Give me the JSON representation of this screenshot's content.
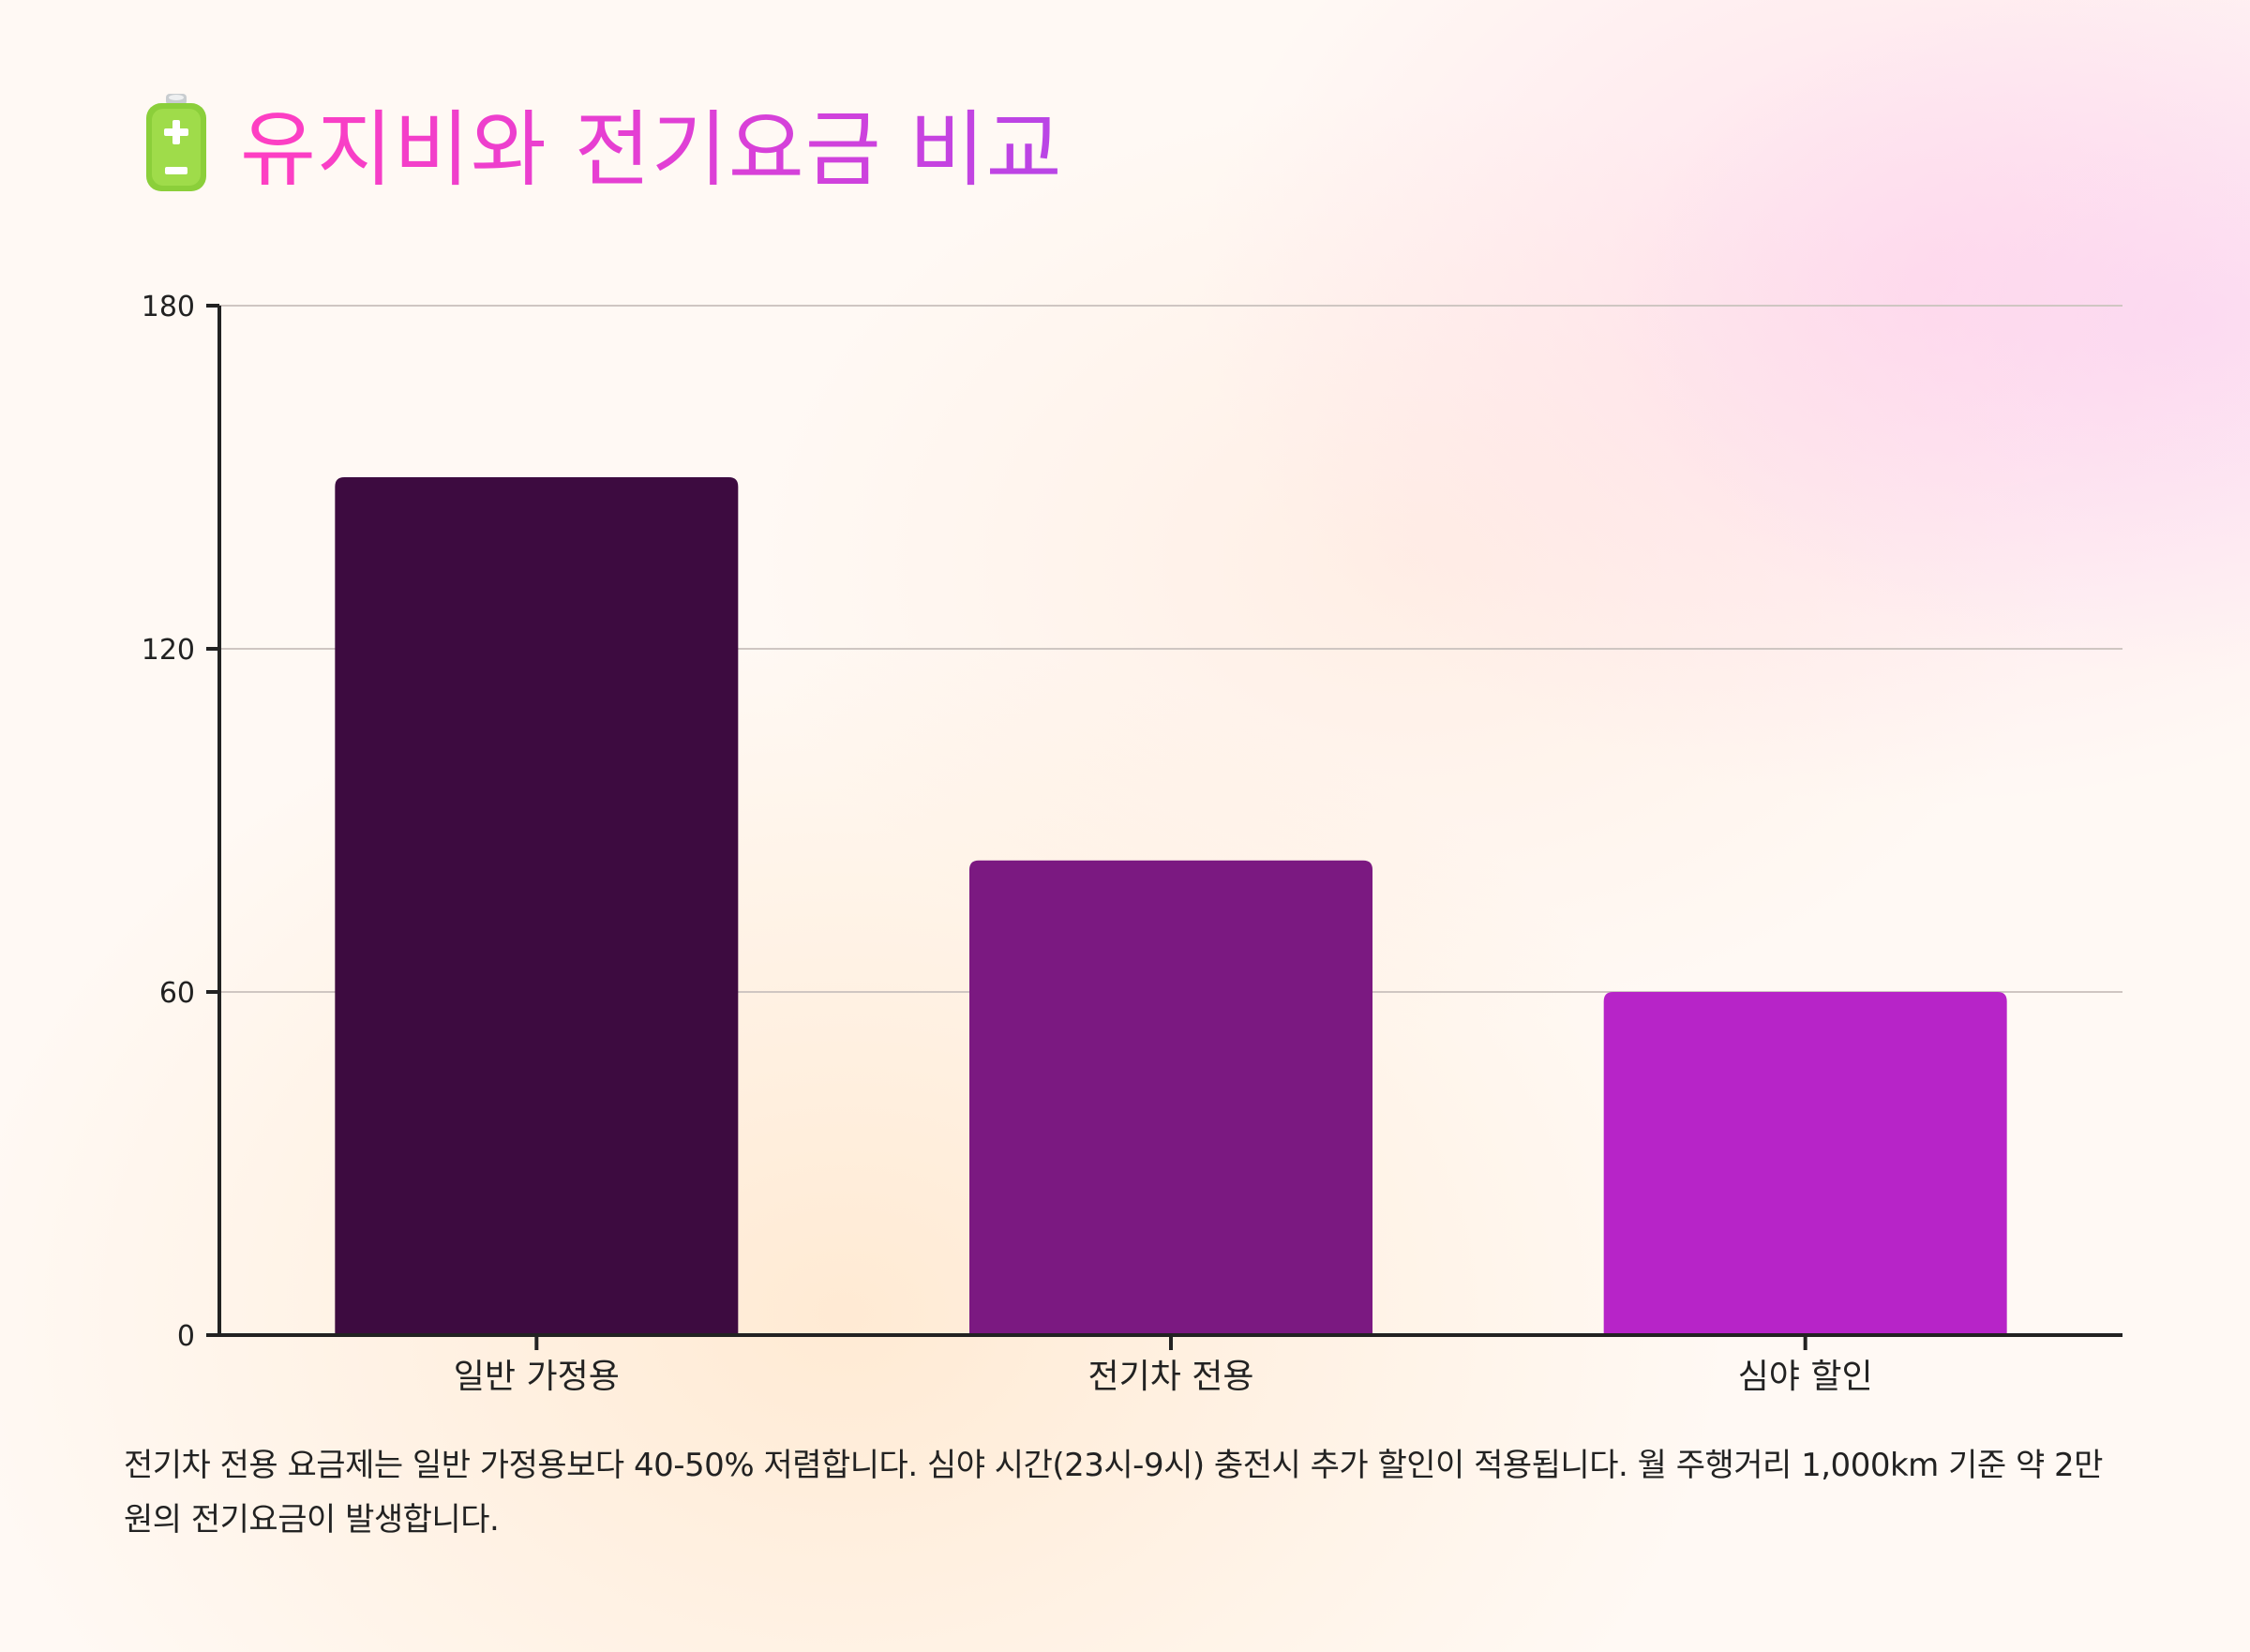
{
  "header": {
    "icon": "battery-icon",
    "title": "유지비와 전기요금 비교"
  },
  "colors": {
    "title_gradient": [
      "#ff3fc2",
      "#b845e6"
    ],
    "bars": [
      "#3d0b40",
      "#7b1981",
      "#b724c8"
    ],
    "axis": "#222222",
    "grid": "#cfc6c2"
  },
  "chart_data": {
    "type": "bar",
    "title": "",
    "xlabel": "",
    "ylabel": "",
    "categories": [
      "일반 가정용",
      "전기차 전용",
      "심야 할인"
    ],
    "values": [
      150,
      83,
      60
    ],
    "ylim": [
      0,
      180
    ],
    "yticks": [
      0,
      60,
      120,
      180
    ],
    "grid": true,
    "legend": "none"
  },
  "caption": "전기차 전용 요금제는 일반 가정용보다 40-50% 저렴합니다. 심야 시간(23시-9시) 충전시 추가 할인이 적용됩니다. 월 주행거리 1,000km 기준 약 2만원의 전기요금이 발생합니다."
}
